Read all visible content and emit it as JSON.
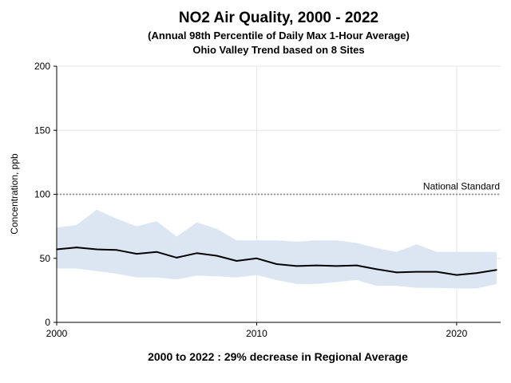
{
  "chart_data": {
    "type": "line",
    "title": "NO2 Air Quality, 2000 - 2022",
    "subtitle_line1": "(Annual 98th Percentile of Daily Max 1-Hour Average)",
    "subtitle_line2": "Ohio Valley Trend based on 8 Sites",
    "ylabel": "Concentration, ppb",
    "xlim": [
      2000,
      2022.2
    ],
    "ylim": [
      0,
      200
    ],
    "x_ticks": [
      2000,
      2010,
      2020
    ],
    "y_ticks": [
      0,
      50,
      100,
      150,
      200
    ],
    "grid": true,
    "x": [
      2000,
      2001,
      2002,
      2003,
      2004,
      2005,
      2006,
      2007,
      2008,
      2009,
      2010,
      2011,
      2012,
      2013,
      2014,
      2015,
      2016,
      2017,
      2018,
      2019,
      2020,
      2021,
      2022
    ],
    "series": [
      {
        "role": "average",
        "values": [
          57,
          58.5,
          57,
          56.5,
          53.5,
          55,
          50.5,
          54,
          52,
          48,
          50,
          45.5,
          44,
          44.5,
          44,
          44.5,
          41.5,
          39,
          39.5,
          39.5,
          37,
          38.5,
          41
        ]
      },
      {
        "role": "upper",
        "values": [
          74,
          76,
          88,
          81,
          75,
          79,
          67,
          78,
          73,
          64,
          64,
          64,
          63,
          64,
          64,
          62,
          58,
          55,
          61,
          55,
          55,
          55,
          55
        ]
      },
      {
        "role": "lower",
        "values": [
          42,
          42,
          40,
          38,
          35,
          35,
          33.5,
          36.5,
          36,
          35,
          37,
          33,
          30,
          30,
          31.5,
          33,
          28.5,
          28.5,
          27,
          27,
          26.5,
          26.5,
          30
        ]
      }
    ],
    "reference_line": {
      "label": "National Standard",
      "value": 100
    },
    "footer": "2000 to 2022 :  29% decrease in Regional Average",
    "colors": {
      "band": "#dce6f2",
      "line": "#000000",
      "grid": "#e6e6e6",
      "reference": "#999999"
    }
  }
}
